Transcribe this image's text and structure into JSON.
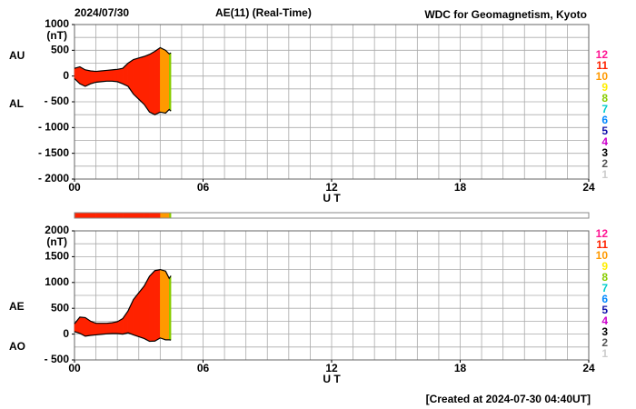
{
  "header": {
    "date": "2024/07/30",
    "title": "AE(11) (Real-Time)",
    "source": "WDC for Geomagnetism, Kyoto"
  },
  "footer": "[Created at 2024-07-30 04:40UT]",
  "station_legend": {
    "values": [
      12,
      11,
      10,
      9,
      8,
      7,
      6,
      5,
      4,
      3,
      2,
      1
    ],
    "colors": [
      "#ff1493",
      "#ff2200",
      "#ff9900",
      "#ffee00",
      "#88cc00",
      "#00cccc",
      "#0088ff",
      "#1111aa",
      "#cc00cc",
      "#000000",
      "#555555",
      "#cccccc"
    ]
  },
  "chart_data": [
    {
      "type": "range_area",
      "xlabel": "U T",
      "yunit": "(nT)",
      "x": [
        0,
        0.25,
        0.5,
        0.75,
        1,
        1.25,
        1.5,
        1.75,
        2,
        2.25,
        2.5,
        2.75,
        3,
        3.25,
        3.5,
        3.75,
        4,
        4.25,
        4.42,
        4.5
      ],
      "series": [
        {
          "name": "AU",
          "values": [
            150,
            180,
            120,
            100,
            90,
            100,
            110,
            120,
            130,
            150,
            250,
            320,
            350,
            380,
            420,
            480,
            550,
            500,
            430,
            450
          ]
        },
        {
          "name": "AL",
          "values": [
            -50,
            -150,
            -200,
            -150,
            -120,
            -110,
            -100,
            -100,
            -110,
            -150,
            -200,
            -350,
            -450,
            -550,
            -700,
            -750,
            -700,
            -720,
            -650,
            -680
          ]
        }
      ],
      "stations": [
        11,
        11,
        11,
        11,
        11,
        11,
        11,
        11,
        11,
        11,
        11,
        11,
        11,
        11,
        11,
        11,
        10,
        10,
        8,
        8
      ],
      "xlim": [
        0,
        24
      ],
      "xticks": [
        {
          "value": 0,
          "label": "00"
        },
        {
          "value": 6,
          "label": "06"
        },
        12,
        18,
        24
      ],
      "xgrid": [
        0,
        1,
        2,
        3,
        4,
        5,
        6,
        7,
        8,
        9,
        10,
        11,
        12,
        13,
        14,
        15,
        16,
        17,
        18,
        19,
        20,
        21,
        22,
        23,
        24
      ],
      "ylim": [
        -2000,
        1000
      ],
      "yticks": [
        1000,
        500,
        0,
        {
          "value": -500,
          "label": "- 500"
        },
        {
          "value": -1000,
          "label": "- 1000"
        },
        {
          "value": -1500,
          "label": "- 1500"
        },
        {
          "value": -2000,
          "label": "- 2000"
        }
      ],
      "ygrid": [
        -2000,
        -1750,
        -1500,
        -1250,
        -1000,
        -750,
        -500,
        -250,
        0,
        250,
        500,
        750,
        1000
      ]
    },
    {
      "type": "range_area",
      "xlabel": "U T",
      "yunit": "(nT)",
      "x": [
        0,
        0.25,
        0.5,
        0.75,
        1,
        1.25,
        1.5,
        1.75,
        2,
        2.25,
        2.5,
        2.75,
        3,
        3.25,
        3.5,
        3.75,
        4,
        4.25,
        4.42,
        4.5
      ],
      "series": [
        {
          "name": "AE",
          "values": [
            200,
            330,
            320,
            250,
            210,
            210,
            210,
            220,
            240,
            300,
            450,
            670,
            800,
            930,
            1120,
            1230,
            1250,
            1220,
            1080,
            1130
          ]
        },
        {
          "name": "AO",
          "values": [
            50,
            15,
            -40,
            -25,
            -15,
            -5,
            5,
            10,
            10,
            0,
            25,
            -15,
            -50,
            -85,
            -140,
            -135,
            -75,
            -110,
            -110,
            -115
          ]
        }
      ],
      "stations": [
        11,
        11,
        11,
        11,
        11,
        11,
        11,
        11,
        11,
        11,
        11,
        11,
        11,
        11,
        11,
        11,
        10,
        10,
        8,
        8
      ],
      "xlim": [
        0,
        24
      ],
      "xticks": [
        {
          "value": 0,
          "label": "00"
        },
        {
          "value": 6,
          "label": "06"
        },
        12,
        18,
        24
      ],
      "xgrid": [
        0,
        1,
        2,
        3,
        4,
        5,
        6,
        7,
        8,
        9,
        10,
        11,
        12,
        13,
        14,
        15,
        16,
        17,
        18,
        19,
        20,
        21,
        22,
        23,
        24
      ],
      "ylim": [
        -500,
        2000
      ],
      "yticks": [
        2000,
        1500,
        1000,
        500,
        0,
        {
          "value": -500,
          "label": "- 500"
        }
      ],
      "ygrid": [
        -500,
        -250,
        0,
        250,
        500,
        750,
        1000,
        1250,
        1500,
        1750,
        2000
      ]
    }
  ]
}
